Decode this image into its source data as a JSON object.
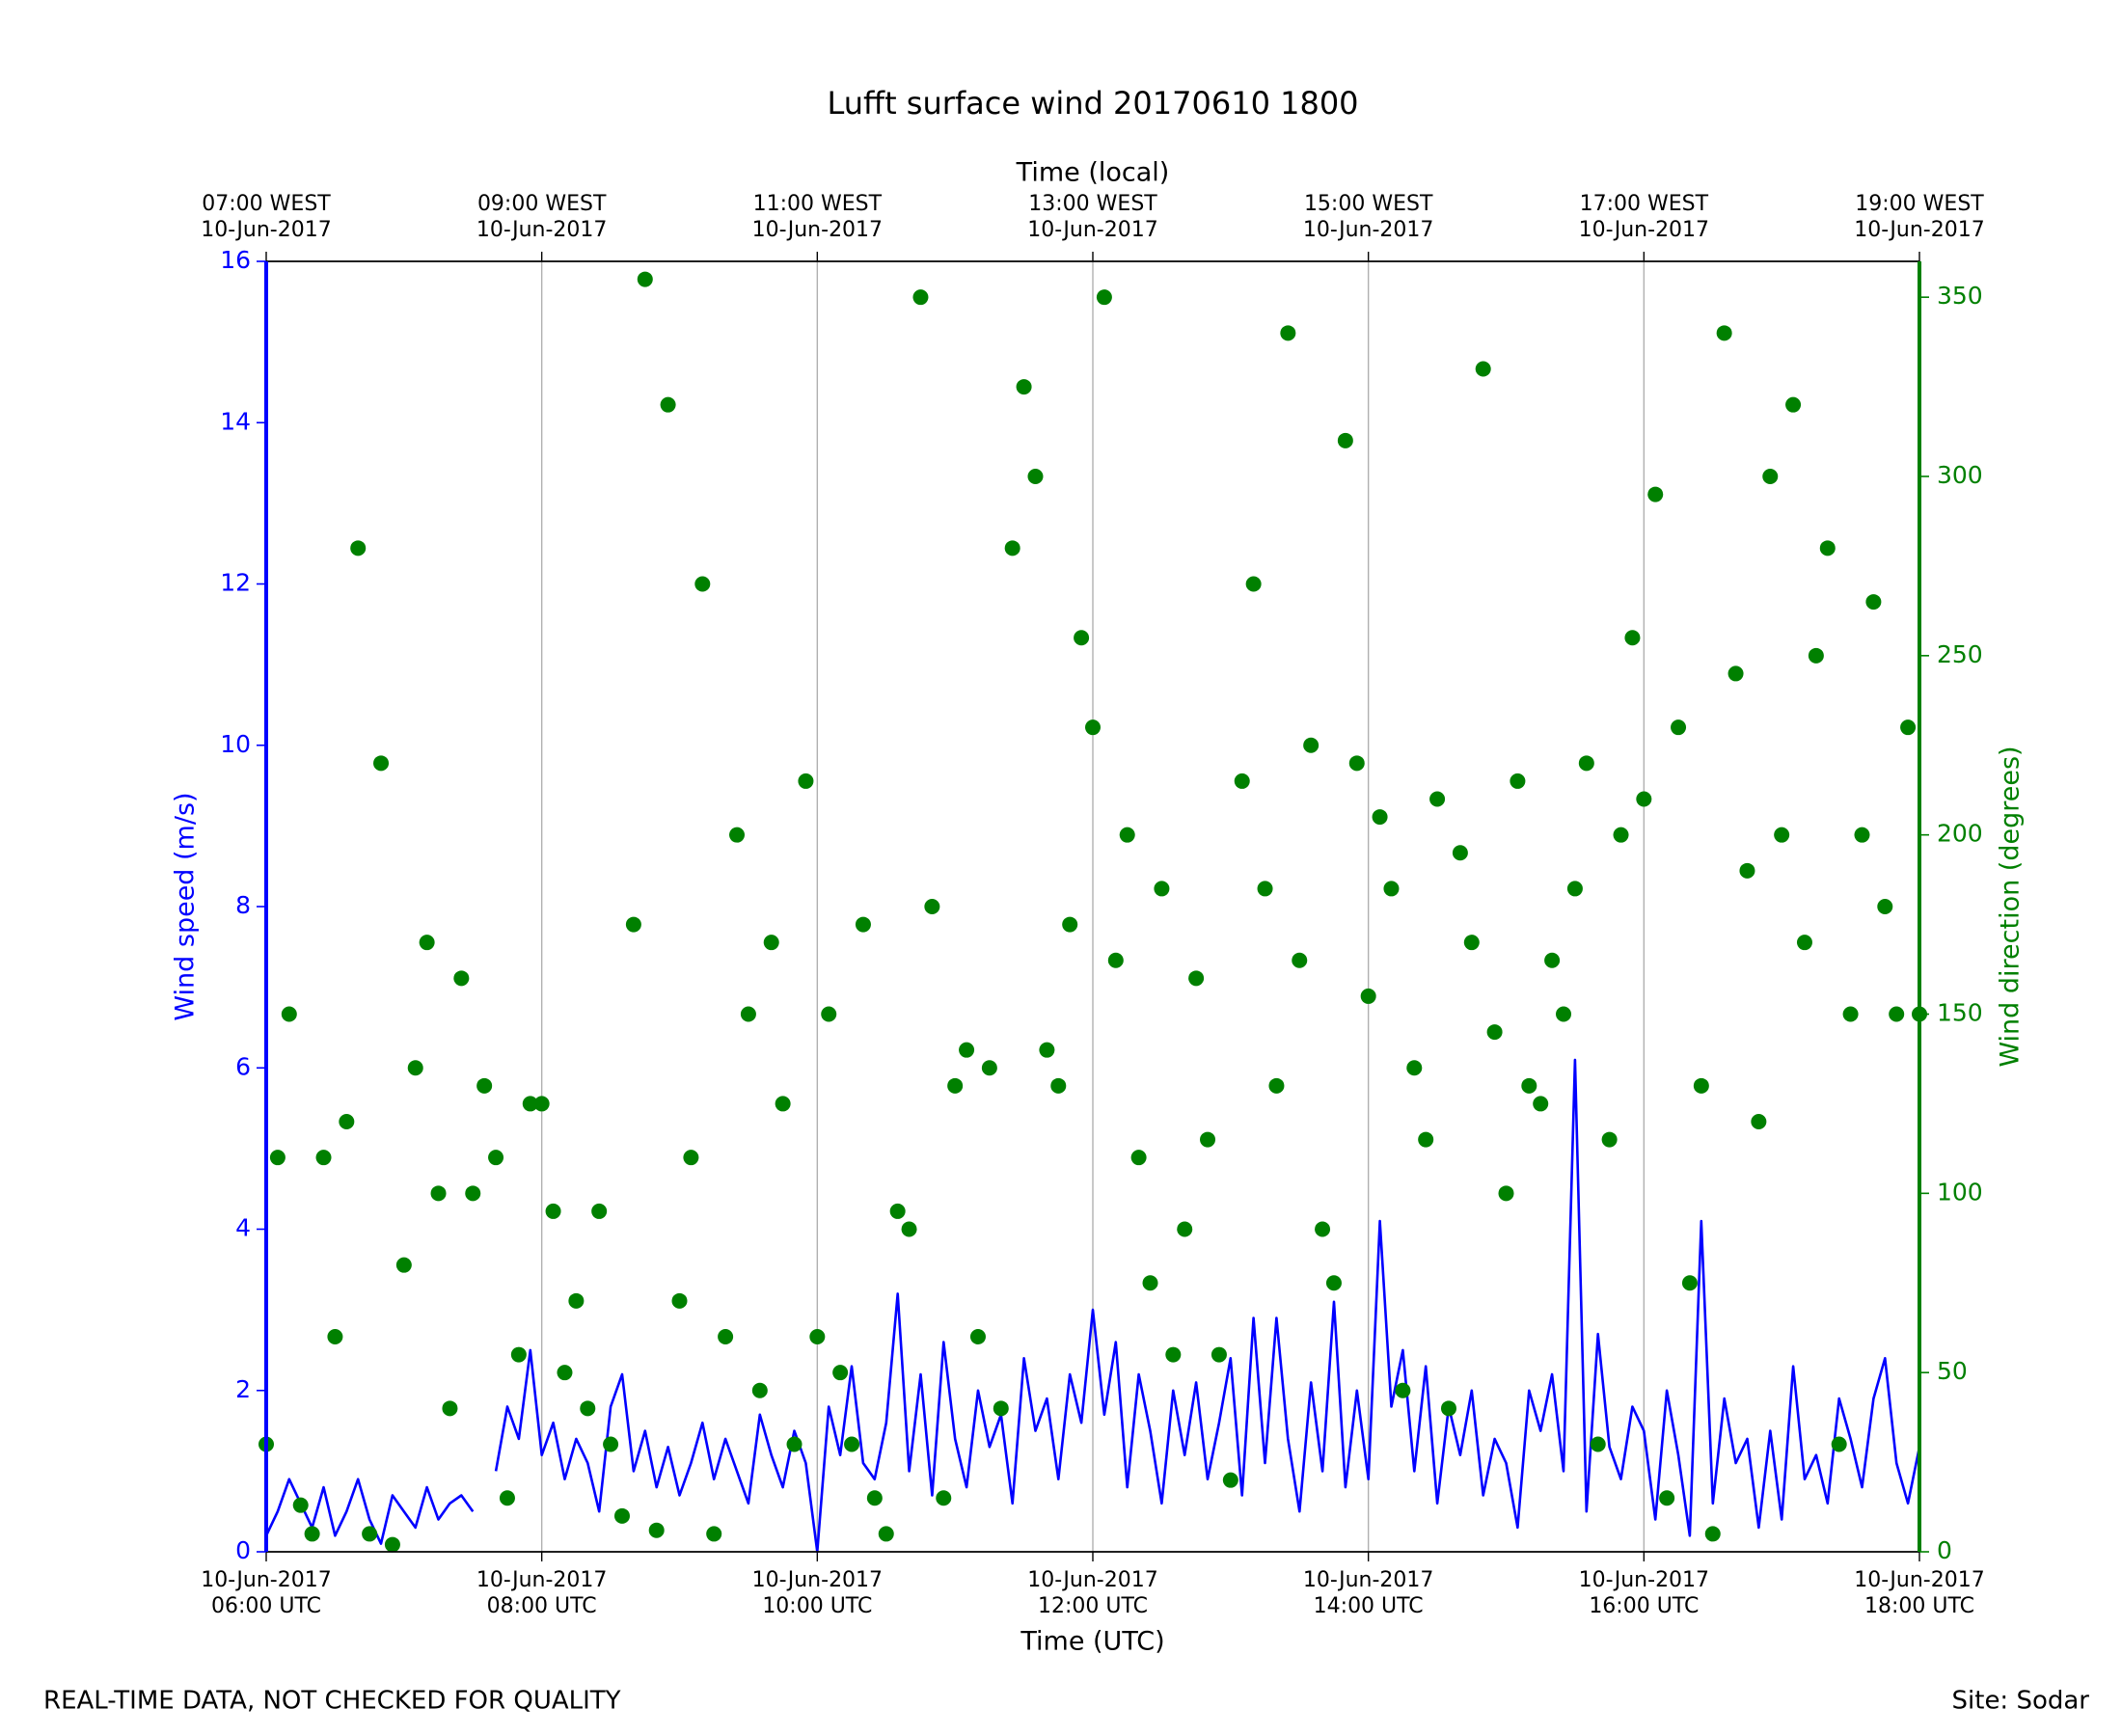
{
  "chart_data": {
    "type": "line",
    "title": "Lufft surface wind 20170610 1800",
    "xlabel": "Time (UTC)",
    "x2label": "Time (local)",
    "ylabel": "Wind speed (m/s)",
    "y2label": "Wind direction (degrees)",
    "notes": [
      "REAL-TIME DATA, NOT CHECKED FOR QUALITY",
      "Site: Sodar"
    ],
    "grid": "x",
    "xlim": [
      "2017-06-10 06:00",
      "2017-06-10 18:00"
    ],
    "xticks": [
      {
        "value": "2017-06-10 06:00",
        "label": "10-Jun-2017\n06:00 UTC"
      },
      {
        "value": "2017-06-10 08:00",
        "label": "10-Jun-2017\n08:00 UTC"
      },
      {
        "value": "2017-06-10 10:00",
        "label": "10-Jun-2017\n10:00 UTC"
      },
      {
        "value": "2017-06-10 12:00",
        "label": "10-Jun-2017\n12:00 UTC"
      },
      {
        "value": "2017-06-10 14:00",
        "label": "10-Jun-2017\n14:00 UTC"
      },
      {
        "value": "2017-06-10 16:00",
        "label": "10-Jun-2017\n16:00 UTC"
      },
      {
        "value": "2017-06-10 18:00",
        "label": "10-Jun-2017\n18:00 UTC"
      }
    ],
    "x2ticks": [
      {
        "value": "2017-06-10 06:00",
        "label": "07:00 WEST\n10-Jun-2017"
      },
      {
        "value": "2017-06-10 08:00",
        "label": "09:00 WEST\n10-Jun-2017"
      },
      {
        "value": "2017-06-10 10:00",
        "label": "11:00 WEST\n10-Jun-2017"
      },
      {
        "value": "2017-06-10 12:00",
        "label": "13:00 WEST\n10-Jun-2017"
      },
      {
        "value": "2017-06-10 14:00",
        "label": "15:00 WEST\n10-Jun-2017"
      },
      {
        "value": "2017-06-10 16:00",
        "label": "17:00 WEST\n10-Jun-2017"
      },
      {
        "value": "2017-06-10 18:00",
        "label": "19:00 WEST\n10-Jun-2017"
      }
    ],
    "ylim": [
      0,
      16
    ],
    "yticks": [
      0,
      2,
      4,
      6,
      8,
      10,
      12,
      14,
      16
    ],
    "y2lim": [
      0,
      360
    ],
    "y2ticks": [
      0,
      50,
      100,
      150,
      200,
      250,
      300,
      350
    ],
    "x": [
      "2017-06-10 06:00",
      "2017-06-10 06:05",
      "2017-06-10 06:10",
      "2017-06-10 06:15",
      "2017-06-10 06:20",
      "2017-06-10 06:25",
      "2017-06-10 06:30",
      "2017-06-10 06:35",
      "2017-06-10 06:40",
      "2017-06-10 06:45",
      "2017-06-10 06:50",
      "2017-06-10 06:55",
      "2017-06-10 07:00",
      "2017-06-10 07:05",
      "2017-06-10 07:10",
      "2017-06-10 07:15",
      "2017-06-10 07:20",
      "2017-06-10 07:25",
      "2017-06-10 07:30",
      "2017-06-10 07:35",
      "2017-06-10 07:40",
      "2017-06-10 07:45",
      "2017-06-10 07:50",
      "2017-06-10 07:55",
      "2017-06-10 08:00",
      "2017-06-10 08:05",
      "2017-06-10 08:10",
      "2017-06-10 08:15",
      "2017-06-10 08:20",
      "2017-06-10 08:25",
      "2017-06-10 08:30",
      "2017-06-10 08:35",
      "2017-06-10 08:40",
      "2017-06-10 08:45",
      "2017-06-10 08:50",
      "2017-06-10 08:55",
      "2017-06-10 09:00",
      "2017-06-10 09:05",
      "2017-06-10 09:10",
      "2017-06-10 09:15",
      "2017-06-10 09:20",
      "2017-06-10 09:25",
      "2017-06-10 09:30",
      "2017-06-10 09:35",
      "2017-06-10 09:40",
      "2017-06-10 09:45",
      "2017-06-10 09:50",
      "2017-06-10 09:55",
      "2017-06-10 10:00",
      "2017-06-10 10:05",
      "2017-06-10 10:10",
      "2017-06-10 10:15",
      "2017-06-10 10:20",
      "2017-06-10 10:25",
      "2017-06-10 10:30",
      "2017-06-10 10:35",
      "2017-06-10 10:40",
      "2017-06-10 10:45",
      "2017-06-10 10:50",
      "2017-06-10 10:55",
      "2017-06-10 11:00",
      "2017-06-10 11:05",
      "2017-06-10 11:10",
      "2017-06-10 11:15",
      "2017-06-10 11:20",
      "2017-06-10 11:25",
      "2017-06-10 11:30",
      "2017-06-10 11:35",
      "2017-06-10 11:40",
      "2017-06-10 11:45",
      "2017-06-10 11:50",
      "2017-06-10 11:55",
      "2017-06-10 12:00",
      "2017-06-10 12:05",
      "2017-06-10 12:10",
      "2017-06-10 12:15",
      "2017-06-10 12:20",
      "2017-06-10 12:25",
      "2017-06-10 12:30",
      "2017-06-10 12:35",
      "2017-06-10 12:40",
      "2017-06-10 12:45",
      "2017-06-10 12:50",
      "2017-06-10 12:55",
      "2017-06-10 13:00",
      "2017-06-10 13:05",
      "2017-06-10 13:10",
      "2017-06-10 13:15",
      "2017-06-10 13:20",
      "2017-06-10 13:25",
      "2017-06-10 13:30",
      "2017-06-10 13:35",
      "2017-06-10 13:40",
      "2017-06-10 13:45",
      "2017-06-10 13:50",
      "2017-06-10 13:55",
      "2017-06-10 14:00",
      "2017-06-10 14:05",
      "2017-06-10 14:10",
      "2017-06-10 14:15",
      "2017-06-10 14:20",
      "2017-06-10 14:25",
      "2017-06-10 14:30",
      "2017-06-10 14:35",
      "2017-06-10 14:40",
      "2017-06-10 14:45",
      "2017-06-10 14:50",
      "2017-06-10 14:55",
      "2017-06-10 15:00",
      "2017-06-10 15:05",
      "2017-06-10 15:10",
      "2017-06-10 15:15",
      "2017-06-10 15:20",
      "2017-06-10 15:25",
      "2017-06-10 15:30",
      "2017-06-10 15:35",
      "2017-06-10 15:40",
      "2017-06-10 15:45",
      "2017-06-10 15:50",
      "2017-06-10 15:55",
      "2017-06-10 16:00",
      "2017-06-10 16:05",
      "2017-06-10 16:10",
      "2017-06-10 16:15",
      "2017-06-10 16:20",
      "2017-06-10 16:25",
      "2017-06-10 16:30",
      "2017-06-10 16:35",
      "2017-06-10 16:40",
      "2017-06-10 16:45",
      "2017-06-10 16:50",
      "2017-06-10 16:55",
      "2017-06-10 17:00",
      "2017-06-10 17:05",
      "2017-06-10 17:10",
      "2017-06-10 17:15",
      "2017-06-10 17:20",
      "2017-06-10 17:25",
      "2017-06-10 17:30",
      "2017-06-10 17:35",
      "2017-06-10 17:40",
      "2017-06-10 17:45",
      "2017-06-10 17:50",
      "2017-06-10 17:55",
      "2017-06-10 18:00"
    ],
    "series": [
      {
        "type": "line",
        "color": "blue",
        "axis": "y",
        "values": [
          0.2,
          0.5,
          0.9,
          0.6,
          0.3,
          0.8,
          0.2,
          0.5,
          0.9,
          0.4,
          0.1,
          0.7,
          0.5,
          0.3,
          0.8,
          0.4,
          0.6,
          0.7,
          0.5,
          null,
          1.0,
          1.8,
          1.4,
          2.5,
          1.2,
          1.6,
          0.9,
          1.4,
          1.1,
          0.5,
          1.8,
          2.2,
          1.0,
          1.5,
          0.8,
          1.3,
          0.7,
          1.1,
          1.6,
          0.9,
          1.4,
          1.0,
          0.6,
          1.7,
          1.2,
          0.8,
          1.5,
          1.1,
          0.0,
          1.8,
          1.2,
          2.3,
          1.1,
          0.9,
          1.6,
          3.2,
          1.0,
          2.2,
          0.7,
          2.6,
          1.4,
          0.8,
          2.0,
          1.3,
          1.7,
          0.6,
          2.4,
          1.5,
          1.9,
          0.9,
          2.2,
          1.6,
          3.0,
          1.7,
          2.6,
          0.8,
          2.2,
          1.5,
          0.6,
          2.0,
          1.2,
          2.1,
          0.9,
          1.6,
          2.4,
          0.7,
          2.9,
          1.1,
          2.9,
          1.4,
          0.5,
          2.1,
          1.0,
          3.1,
          0.8,
          2.0,
          0.9,
          4.1,
          1.8,
          2.5,
          1.0,
          2.3,
          0.6,
          1.8,
          1.2,
          2.0,
          0.7,
          1.4,
          1.1,
          0.3,
          2.0,
          1.5,
          2.2,
          1.0,
          6.1,
          0.5,
          2.7,
          1.3,
          0.9,
          1.8,
          1.5,
          0.4,
          2.0,
          1.2,
          0.2,
          4.1,
          0.6,
          1.9,
          1.1,
          1.4,
          0.3,
          1.5,
          0.4,
          2.3,
          0.9,
          1.2,
          0.6,
          1.9,
          1.4,
          0.8,
          1.9,
          2.4,
          1.1,
          0.6,
          1.3
        ]
      },
      {
        "type": "scatter",
        "color": "green",
        "axis": "y2",
        "values": [
          30,
          110,
          150,
          13,
          5,
          110,
          60,
          120,
          280,
          5,
          220,
          2,
          80,
          135,
          170,
          100,
          40,
          160,
          100,
          130,
          110,
          15,
          55,
          125,
          125,
          95,
          50,
          70,
          40,
          95,
          30,
          10,
          175,
          355,
          6,
          320,
          70,
          110,
          270,
          5,
          60,
          200,
          150,
          45,
          170,
          125,
          30,
          215,
          60,
          150,
          50,
          30,
          175,
          15,
          5,
          95,
          90,
          350,
          180,
          15,
          130,
          140,
          60,
          135,
          40,
          280,
          325,
          300,
          140,
          130,
          175,
          255,
          230,
          350,
          165,
          200,
          110,
          75,
          185,
          55,
          90,
          160,
          115,
          55,
          20,
          215,
          270,
          185,
          130,
          340,
          165,
          225,
          90,
          75,
          310,
          220,
          155,
          205,
          185,
          45,
          135,
          115,
          210,
          40,
          195,
          170,
          330,
          145,
          100,
          215,
          130,
          125,
          165,
          150,
          185,
          220,
          30,
          115,
          200,
          255,
          210,
          295,
          15,
          230,
          75,
          130,
          5,
          340,
          245,
          190,
          120,
          300,
          200,
          320,
          170,
          250,
          280,
          30,
          150,
          200,
          265,
          180,
          150,
          230,
          150
        ]
      }
    ]
  }
}
